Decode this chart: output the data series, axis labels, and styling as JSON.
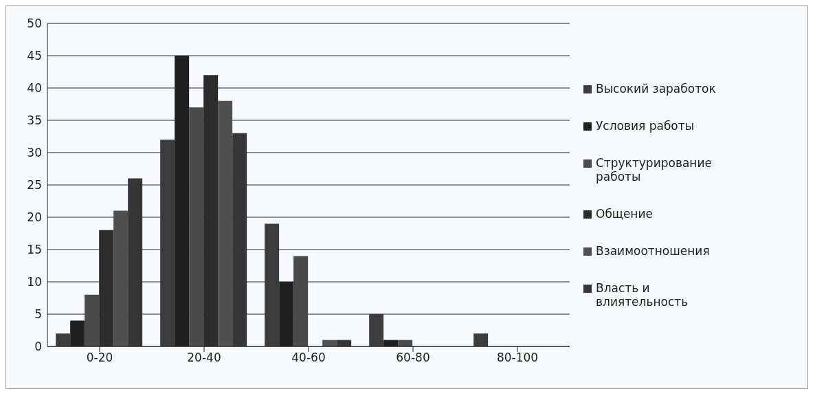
{
  "chart_data": {
    "type": "bar",
    "categories": [
      "0-20",
      "20-40",
      "40-60",
      "60-80",
      "80-100"
    ],
    "series": [
      {
        "name": "Высокий заработок",
        "color": "#3c3c3c",
        "values": [
          2,
          32,
          19,
          5,
          2
        ]
      },
      {
        "name": "Условия работы",
        "color": "#202020",
        "values": [
          4,
          45,
          10,
          1,
          0
        ]
      },
      {
        "name": "Структурирование работы",
        "color": "#4a4a4a",
        "values": [
          8,
          37,
          14,
          1,
          0
        ]
      },
      {
        "name": "Общение",
        "color": "#2c2c2c",
        "values": [
          18,
          42,
          0,
          0,
          0
        ]
      },
      {
        "name": "Взаимоотношения",
        "color": "#505050",
        "values": [
          21,
          38,
          1,
          0,
          0
        ]
      },
      {
        "name": "Власть и влиятельность",
        "color": "#363636",
        "values": [
          26,
          33,
          1,
          0,
          0
        ]
      }
    ],
    "ylim": [
      0,
      50
    ],
    "yticks": [
      0,
      5,
      10,
      15,
      20,
      25,
      30,
      35,
      40,
      45,
      50
    ],
    "grid": "y",
    "legend": "right"
  }
}
